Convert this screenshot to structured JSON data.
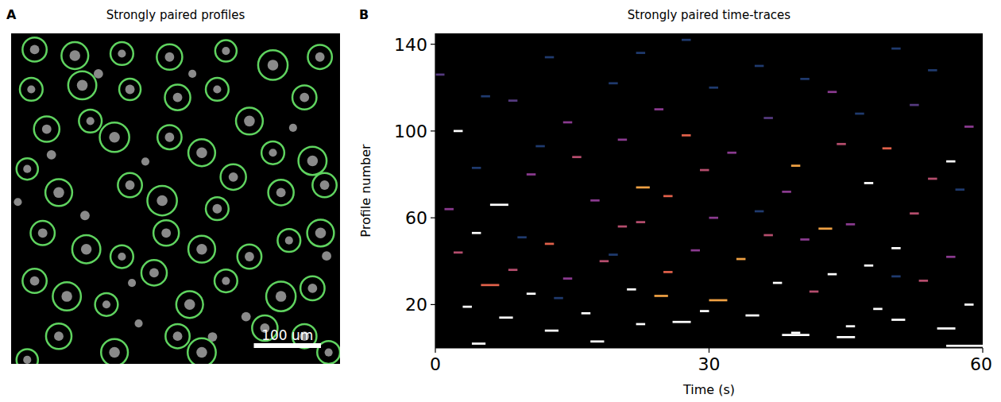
{
  "chart_data": [
    {
      "type": "image",
      "panel": "A",
      "title": "Strongly paired profiles",
      "xlim": [
        0,
        490
      ],
      "ylim": [
        0,
        490
      ],
      "tick_labels": false,
      "scale_bar": {
        "value": 100,
        "label": "100 um"
      },
      "color": "#5fd35f",
      "profiles": [
        [
          35,
          24,
          18
        ],
        [
          95,
          33,
          20
        ],
        [
          165,
          30,
          17
        ],
        [
          236,
          35,
          19
        ],
        [
          320,
          26,
          16
        ],
        [
          390,
          47,
          22
        ],
        [
          460,
          35,
          18
        ],
        [
          30,
          83,
          17
        ],
        [
          106,
          77,
          21
        ],
        [
          177,
          83,
          16
        ],
        [
          248,
          95,
          19
        ],
        [
          307,
          83,
          17
        ],
        [
          355,
          130,
          20
        ],
        [
          437,
          95,
          18
        ],
        [
          53,
          142,
          19
        ],
        [
          118,
          130,
          17
        ],
        [
          154,
          154,
          22
        ],
        [
          236,
          154,
          18
        ],
        [
          284,
          177,
          20
        ],
        [
          331,
          213,
          19
        ],
        [
          390,
          177,
          17
        ],
        [
          449,
          189,
          21
        ],
        [
          24,
          201,
          16
        ],
        [
          71,
          236,
          20
        ],
        [
          177,
          225,
          18
        ],
        [
          225,
          248,
          22
        ],
        [
          307,
          260,
          17
        ],
        [
          402,
          236,
          19
        ],
        [
          467,
          225,
          18
        ],
        [
          47,
          296,
          18
        ],
        [
          112,
          320,
          21
        ],
        [
          165,
          331,
          17
        ],
        [
          231,
          296,
          19
        ],
        [
          284,
          320,
          20
        ],
        [
          355,
          331,
          18
        ],
        [
          414,
          307,
          17
        ],
        [
          461,
          296,
          20
        ],
        [
          35,
          367,
          18
        ],
        [
          83,
          390,
          21
        ],
        [
          142,
          402,
          17
        ],
        [
          213,
          355,
          19
        ],
        [
          266,
          402,
          20
        ],
        [
          320,
          367,
          17
        ],
        [
          402,
          390,
          22
        ],
        [
          449,
          378,
          18
        ],
        [
          71,
          449,
          19
        ],
        [
          154,
          473,
          20
        ],
        [
          248,
          449,
          18
        ],
        [
          284,
          473,
          21
        ],
        [
          378,
          437,
          19
        ],
        [
          437,
          449,
          18
        ],
        [
          473,
          473,
          17
        ],
        [
          24,
          484,
          16
        ]
      ],
      "cells": [
        [
          35,
          24,
          7
        ],
        [
          95,
          33,
          8
        ],
        [
          165,
          30,
          6
        ],
        [
          236,
          35,
          7
        ],
        [
          320,
          26,
          6
        ],
        [
          390,
          47,
          8
        ],
        [
          460,
          35,
          7
        ],
        [
          30,
          83,
          6
        ],
        [
          106,
          77,
          8
        ],
        [
          177,
          83,
          7
        ],
        [
          248,
          95,
          7
        ],
        [
          307,
          83,
          6
        ],
        [
          355,
          130,
          8
        ],
        [
          437,
          95,
          7
        ],
        [
          53,
          142,
          7
        ],
        [
          118,
          130,
          6
        ],
        [
          154,
          154,
          8
        ],
        [
          236,
          154,
          7
        ],
        [
          284,
          177,
          8
        ],
        [
          331,
          213,
          7
        ],
        [
          390,
          177,
          6
        ],
        [
          449,
          189,
          8
        ],
        [
          24,
          201,
          6
        ],
        [
          71,
          236,
          8
        ],
        [
          177,
          225,
          7
        ],
        [
          225,
          248,
          8
        ],
        [
          307,
          260,
          7
        ],
        [
          402,
          236,
          7
        ],
        [
          467,
          225,
          7
        ],
        [
          47,
          296,
          7
        ],
        [
          112,
          320,
          8
        ],
        [
          165,
          331,
          6
        ],
        [
          231,
          296,
          7
        ],
        [
          284,
          320,
          8
        ],
        [
          355,
          331,
          7
        ],
        [
          414,
          307,
          6
        ],
        [
          461,
          296,
          8
        ],
        [
          35,
          367,
          7
        ],
        [
          83,
          390,
          8
        ],
        [
          142,
          402,
          6
        ],
        [
          213,
          355,
          7
        ],
        [
          266,
          402,
          8
        ],
        [
          320,
          367,
          6
        ],
        [
          402,
          390,
          8
        ],
        [
          449,
          378,
          7
        ],
        [
          71,
          449,
          7
        ],
        [
          154,
          473,
          8
        ],
        [
          248,
          449,
          7
        ],
        [
          284,
          473,
          8
        ],
        [
          378,
          437,
          7
        ],
        [
          437,
          449,
          7
        ],
        [
          473,
          473,
          6
        ],
        [
          24,
          484,
          6
        ],
        [
          130,
          60,
          7
        ],
        [
          200,
          190,
          6
        ],
        [
          60,
          180,
          7
        ],
        [
          420,
          140,
          6
        ],
        [
          350,
          420,
          7
        ],
        [
          190,
          430,
          6
        ],
        [
          110,
          270,
          7
        ],
        [
          270,
          60,
          6
        ],
        [
          470,
          330,
          7
        ],
        [
          10,
          250,
          6
        ],
        [
          300,
          450,
          7
        ],
        [
          180,
          370,
          6
        ]
      ]
    },
    {
      "type": "heatmap",
      "panel": "B",
      "title": "Strongly paired time-traces",
      "x_label": "Time (s)",
      "y_label": "Profile number",
      "xlim": [
        0,
        60
      ],
      "ylim": [
        0,
        145
      ],
      "xticks": [
        0,
        30,
        60
      ],
      "yticks": [
        20,
        60,
        100,
        140
      ],
      "zlim": [
        0,
        1
      ],
      "cells": [
        [
          2,
          4,
          5.5,
          1
        ],
        [
          3,
          17,
          18.5,
          1
        ],
        [
          5,
          44,
          46,
          1
        ],
        [
          6,
          38,
          41,
          1
        ],
        [
          7,
          39,
          40,
          1
        ],
        [
          1,
          56,
          60,
          1
        ],
        [
          8,
          12,
          13.5,
          1
        ],
        [
          9,
          55,
          57,
          1
        ],
        [
          10,
          45,
          46,
          1
        ],
        [
          11,
          22,
          23,
          1
        ],
        [
          12,
          26,
          28,
          1
        ],
        [
          13,
          50,
          51.5,
          1
        ],
        [
          14,
          7,
          8.5,
          1
        ],
        [
          15,
          34,
          35.5,
          1
        ],
        [
          16,
          16,
          17,
          1
        ],
        [
          17,
          29,
          30,
          1
        ],
        [
          18,
          48,
          49,
          1
        ],
        [
          19,
          3,
          4,
          1
        ],
        [
          20,
          58,
          59,
          1
        ],
        [
          22,
          30,
          32,
          0.8
        ],
        [
          24,
          24,
          25.5,
          0.8
        ],
        [
          25,
          10,
          11,
          1
        ],
        [
          26,
          41,
          42,
          0.6
        ],
        [
          27,
          21,
          22,
          1
        ],
        [
          29,
          5,
          7,
          0.7
        ],
        [
          30,
          37,
          38,
          1
        ],
        [
          31,
          53,
          54,
          0.6
        ],
        [
          32,
          14,
          15,
          0.5
        ],
        [
          34,
          43,
          44,
          1
        ],
        [
          35,
          25,
          26,
          0.7
        ],
        [
          36,
          8,
          9,
          0.6
        ],
        [
          38,
          47,
          48,
          1
        ],
        [
          40,
          18,
          19,
          0.6
        ],
        [
          41,
          33,
          34,
          0.8
        ],
        [
          42,
          56,
          57,
          0.5
        ],
        [
          44,
          2,
          3,
          0.6
        ],
        [
          45,
          28,
          29,
          0.5
        ],
        [
          46,
          50,
          51,
          1
        ],
        [
          48,
          12,
          13,
          0.7
        ],
        [
          50,
          40,
          41,
          0.5
        ],
        [
          52,
          36,
          37,
          0.6
        ],
        [
          53,
          4,
          5,
          1
        ],
        [
          55,
          42,
          43.5,
          0.8
        ],
        [
          56,
          20,
          21,
          0.6
        ],
        [
          57,
          45,
          46,
          0.5
        ],
        [
          58,
          22,
          23,
          0.6
        ],
        [
          60,
          30,
          31,
          0.5
        ],
        [
          62,
          52,
          53,
          0.6
        ],
        [
          64,
          1,
          2,
          0.5
        ],
        [
          66,
          6,
          8,
          1
        ],
        [
          68,
          17,
          18,
          0.5
        ],
        [
          70,
          25,
          26,
          0.7
        ],
        [
          72,
          38,
          39,
          0.5
        ],
        [
          74,
          22,
          23.5,
          0.8
        ],
        [
          76,
          47,
          48,
          1
        ],
        [
          78,
          54,
          55,
          0.6
        ],
        [
          80,
          10,
          11,
          0.5
        ],
        [
          82,
          29,
          30,
          0.6
        ],
        [
          84,
          39,
          40,
          0.8
        ],
        [
          86,
          56,
          57,
          1
        ],
        [
          88,
          15,
          16,
          0.6
        ],
        [
          90,
          32,
          33,
          0.5
        ],
        [
          92,
          49,
          50,
          0.7
        ],
        [
          94,
          44,
          45,
          0.6
        ],
        [
          96,
          20,
          21,
          0.5
        ],
        [
          98,
          27,
          28,
          0.7
        ],
        [
          100,
          2,
          3,
          1
        ],
        [
          102,
          58,
          59,
          0.5
        ],
        [
          104,
          14,
          15,
          0.5
        ],
        [
          106,
          36,
          37,
          0.4
        ],
        [
          110,
          24,
          25,
          0.5
        ],
        [
          114,
          8,
          9,
          0.4
        ],
        [
          118,
          43,
          44,
          0.5
        ],
        [
          122,
          19,
          20,
          0.3
        ],
        [
          126,
          0,
          1,
          0.4
        ],
        [
          130,
          35,
          36,
          0.3
        ],
        [
          134,
          12,
          13,
          0.3
        ],
        [
          138,
          50,
          51,
          0.3
        ],
        [
          142,
          27,
          28,
          0.3
        ],
        [
          128,
          54,
          55,
          0.3
        ],
        [
          116,
          5,
          6,
          0.3
        ],
        [
          108,
          46,
          47,
          0.3
        ],
        [
          120,
          30,
          31,
          0.3
        ],
        [
          112,
          52,
          53,
          0.4
        ],
        [
          124,
          40,
          41,
          0.3
        ],
        [
          136,
          22,
          23,
          0.3
        ],
        [
          23,
          13,
          14,
          0.3
        ],
        [
          33,
          50,
          51,
          0.3
        ],
        [
          43,
          19,
          20,
          0.3
        ],
        [
          51,
          9,
          10,
          0.3
        ],
        [
          63,
          35,
          36,
          0.3
        ],
        [
          73,
          57,
          58,
          0.3
        ],
        [
          83,
          4,
          5,
          0.3
        ],
        [
          93,
          11,
          12,
          0.3
        ]
      ]
    }
  ]
}
